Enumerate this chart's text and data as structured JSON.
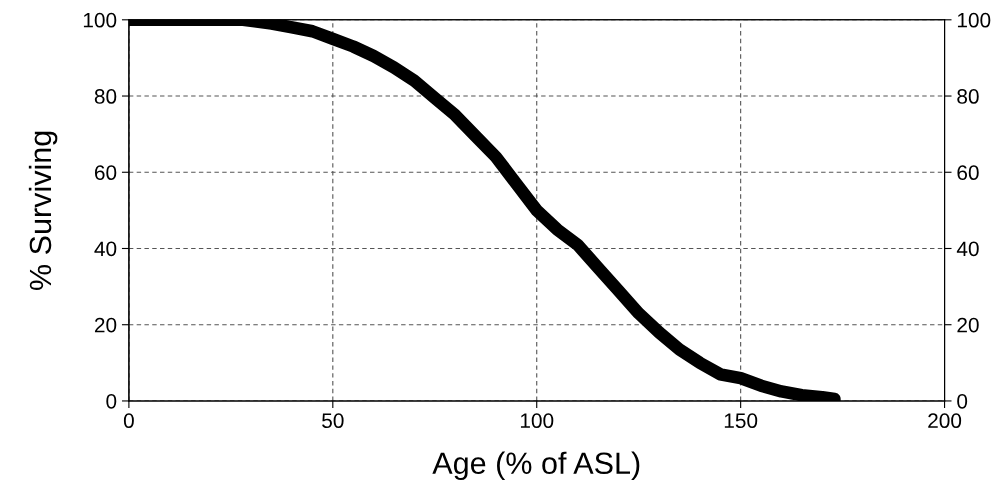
{
  "chart_data": {
    "type": "line",
    "xlabel": "Age (% of ASL)",
    "ylabel": "% Surviving",
    "x": [
      0,
      10,
      20,
      28,
      35,
      40,
      45,
      50,
      55,
      60,
      65,
      70,
      75,
      80,
      85,
      90,
      95,
      100,
      105,
      110,
      115,
      120,
      125,
      130,
      135,
      140,
      145,
      150,
      155,
      160,
      165,
      170,
      173
    ],
    "series": [
      {
        "color": "#000000",
        "values": [
          100,
          100,
          100,
          100,
          99,
          98,
          97,
          95,
          93,
          90.5,
          87.5,
          84,
          79.5,
          75,
          69.5,
          64,
          57,
          50,
          45,
          41,
          35,
          29,
          23,
          18,
          13.5,
          10,
          7,
          6,
          4,
          2.5,
          1.5,
          1,
          0.5
        ]
      }
    ],
    "xlim": [
      0,
      200
    ],
    "xticks": [
      0,
      50,
      100,
      150,
      200
    ],
    "ylim": [
      0,
      100
    ],
    "yticks": [
      0,
      20,
      40,
      60,
      80,
      100
    ],
    "y2lim": [
      0,
      100
    ],
    "y2ticks": [
      0,
      20,
      40,
      60,
      80,
      100
    ],
    "grid": true,
    "line_style": "solid"
  }
}
